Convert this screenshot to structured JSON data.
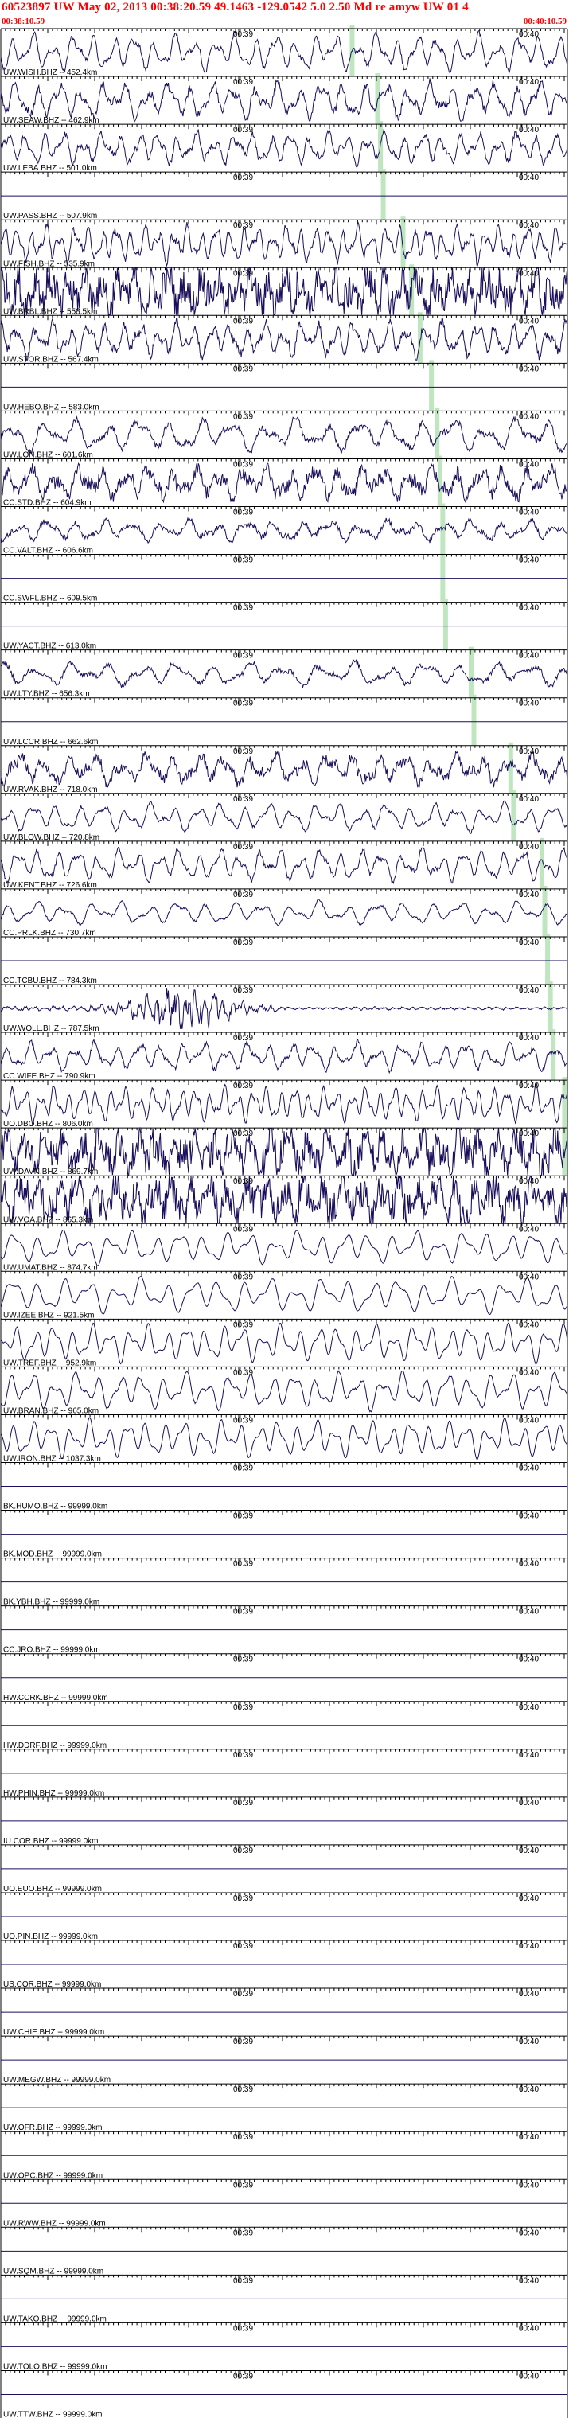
{
  "header": {
    "title": "60523897 UW May 02, 2013 00:38:20.59   49.1463 -129.0542  5.0 2.50 Md re amyw UW 01   4",
    "start_time": "00:38:10.59",
    "end_time": "00:40:10.59"
  },
  "colors": {
    "trace": "#1a0f5c",
    "pick": "#bfe6bf",
    "header": "#ff0000",
    "grid": "#000000"
  },
  "chart_data": {
    "type": "line",
    "title": "",
    "tick_labels": [
      "00:39",
      "00:40"
    ],
    "traces": [
      {
        "label": "UW.WISH.BHZ -- 452.4km",
        "kind": "seismic",
        "freq": 28,
        "noise": 0.25,
        "amp": 0.8,
        "pick": 0.62
      },
      {
        "label": "UW.SEAW.BHZ -- 462.9km",
        "kind": "seismic",
        "freq": 26,
        "noise": 0.4,
        "amp": 0.8,
        "pick": 0.665
      },
      {
        "label": "UW.LEBA.BHZ -- 501.0km",
        "kind": "seismic",
        "freq": 30,
        "noise": 0.35,
        "amp": 0.7,
        "pick": 0.67
      },
      {
        "label": "UW.PASS.BHZ -- 507.9km",
        "kind": "flat",
        "pick": 0.675
      },
      {
        "label": "UW.FISH.BHZ -- 535.9km",
        "kind": "seismic",
        "freq": 40,
        "noise": 0.3,
        "amp": 0.8,
        "pick": 0.71
      },
      {
        "label": "UW.BRBL.BHZ -- 558.5km",
        "kind": "seismic",
        "freq": 34,
        "noise": 1.6,
        "amp": 0.85,
        "pick": 0.725
      },
      {
        "label": "UW.STOR.BHZ -- 567.4km",
        "kind": "seismic",
        "freq": 32,
        "noise": 0.45,
        "amp": 0.75,
        "pick": 0.74
      },
      {
        "label": "UW.HEBO.BHZ -- 583.0km",
        "kind": "flat",
        "pick": 0.76
      },
      {
        "label": "UW.LON.BHZ -- 601.6km",
        "kind": "seismic",
        "freq": 18,
        "noise": 0.35,
        "amp": 0.7,
        "pick": 0.77
      },
      {
        "label": "CC.STD.BHZ -- 604.9km",
        "kind": "seismic",
        "freq": 24,
        "noise": 0.8,
        "amp": 0.7,
        "pick": 0.775
      },
      {
        "label": "CC.VALT.BHZ -- 606.6km",
        "kind": "seismic",
        "freq": 20,
        "noise": 0.5,
        "amp": 0.45,
        "pick": 0.78
      },
      {
        "label": "CC.SWFL.BHZ -- 609.5km",
        "kind": "flat",
        "pick": 0.78
      },
      {
        "label": "UW.YACT.BHZ -- 613.0km",
        "kind": "flat",
        "pick": 0.785
      },
      {
        "label": "UW.LTY.BHZ -- 656.3km",
        "kind": "seismic",
        "freq": 16,
        "noise": 0.4,
        "amp": 0.5,
        "pick": 0.83
      },
      {
        "label": "UW.LCCR.BHZ -- 662.6km",
        "kind": "flat",
        "pick": 0.835
      },
      {
        "label": "UW.RVAK.BHZ -- 718.0km",
        "kind": "seismic",
        "freq": 22,
        "noise": 0.7,
        "amp": 0.65,
        "pick": 0.9
      },
      {
        "label": "UW.BLOW.BHZ -- 720.8km",
        "kind": "seismic",
        "freq": 24,
        "noise": 0.2,
        "amp": 0.6,
        "pick": 0.905
      },
      {
        "label": "UW.KENT.BHZ -- 726.6km",
        "kind": "seismic",
        "freq": 28,
        "noise": 0.25,
        "amp": 0.7,
        "pick": 0.955
      },
      {
        "label": "CC.PRLK.BHZ -- 730.7km",
        "kind": "seismic",
        "freq": 20,
        "noise": 0.2,
        "amp": 0.5,
        "pick": 0.96
      },
      {
        "label": "CC.TCBU.BHZ -- 784.3km",
        "kind": "flat",
        "pick": 0.965
      },
      {
        "label": "UW.WOLL.BHZ -- 787.5km",
        "kind": "burst",
        "freq": 60,
        "noise": 1.0,
        "amp": 0.75,
        "pick": 0.97
      },
      {
        "label": "CC.WIFE.BHZ -- 790.9km",
        "kind": "seismic",
        "freq": 26,
        "noise": 0.3,
        "amp": 0.6,
        "pick": 0.975
      },
      {
        "label": "UO.DBO.BHZ -- 806.0km",
        "kind": "seismic",
        "freq": 40,
        "noise": 0.2,
        "amp": 0.75,
        "pick": 0.995
      },
      {
        "label": "UW.DAVN.BHZ -- 869.7km",
        "kind": "seismic",
        "freq": 30,
        "noise": 1.5,
        "amp": 0.85,
        "pick": 0.995
      },
      {
        "label": "UW.VOA.BHZ -- 865.3km",
        "kind": "seismic",
        "freq": 30,
        "noise": 1.5,
        "amp": 0.85,
        "pick": null
      },
      {
        "label": "UW.UMAT.BHZ -- 874.7km",
        "kind": "seismic",
        "freq": 24,
        "noise": 0.05,
        "amp": 0.7,
        "pick": null
      },
      {
        "label": "UW.IZEE.BHZ -- 921.5km",
        "kind": "seismic",
        "freq": 22,
        "noise": 0.05,
        "amp": 0.75,
        "pick": null
      },
      {
        "label": "UW.TREF.BHZ -- 952.9km",
        "kind": "seismic",
        "freq": 30,
        "noise": 0.05,
        "amp": 0.8,
        "pick": null
      },
      {
        "label": "UW.BRAN.BHZ -- 965.0km",
        "kind": "seismic",
        "freq": 26,
        "noise": 0.1,
        "amp": 0.8,
        "pick": null
      },
      {
        "label": "UW.IRON.BHZ -- 1037.3km",
        "kind": "seismic",
        "freq": 30,
        "noise": 0.05,
        "amp": 0.8,
        "pick": null
      },
      {
        "label": "BK.HUMO.BHZ -- 99999.0km",
        "kind": "flat",
        "pick": null
      },
      {
        "label": "BK.MOD.BHZ -- 99999.0km",
        "kind": "flat",
        "pick": null
      },
      {
        "label": "BK.YBH.BHZ -- 99999.0km",
        "kind": "flat",
        "pick": null
      },
      {
        "label": "CC.JRO.BHZ -- 99999.0km",
        "kind": "flat",
        "pick": null
      },
      {
        "label": "HW.CCRK.BHZ -- 99999.0km",
        "kind": "flat",
        "pick": null
      },
      {
        "label": "HW.DDRF.BHZ -- 99999.0km",
        "kind": "flat",
        "pick": null
      },
      {
        "label": "HW.PHIN.BHZ -- 99999.0km",
        "kind": "flat",
        "pick": null
      },
      {
        "label": "IU.COR.BHZ -- 99999.0km",
        "kind": "flat",
        "pick": null
      },
      {
        "label": "UO.EUO.BHZ -- 99999.0km",
        "kind": "flat",
        "pick": null
      },
      {
        "label": "UO.PIN.BHZ -- 99999.0km",
        "kind": "flat",
        "pick": null
      },
      {
        "label": "US.COR.BHZ -- 99999.0km",
        "kind": "flat",
        "pick": null
      },
      {
        "label": "UW.CHIE.BHZ -- 99999.0km",
        "kind": "flat",
        "pick": null
      },
      {
        "label": "UW.MEGW.BHZ -- 99999.0km",
        "kind": "flat",
        "pick": null
      },
      {
        "label": "UW.OFR.BHZ -- 99999.0km",
        "kind": "flat",
        "pick": null
      },
      {
        "label": "UW.OPC.BHZ -- 99999.0km",
        "kind": "flat",
        "pick": null
      },
      {
        "label": "UW.RWW.BHZ -- 99999.0km",
        "kind": "flat",
        "pick": null
      },
      {
        "label": "UW.SQM.BHZ -- 99999.0km",
        "kind": "flat",
        "pick": null
      },
      {
        "label": "UW.TAKO.BHZ -- 99999.0km",
        "kind": "flat",
        "pick": null
      },
      {
        "label": "UW.TOLO.BHZ -- 99999.0km",
        "kind": "flat",
        "pick": null
      },
      {
        "label": "UW.TTW.BHZ -- 99999.0km",
        "kind": "flat",
        "pick": null
      }
    ]
  }
}
